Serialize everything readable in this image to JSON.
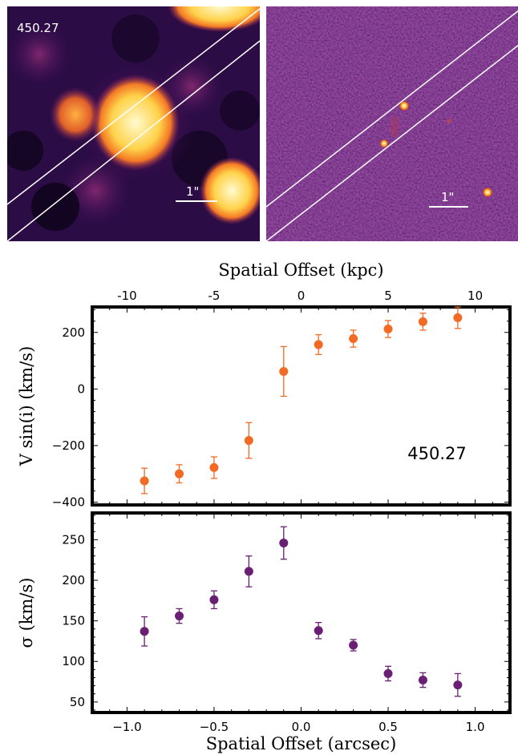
{
  "images": {
    "left": {
      "label": "450.27",
      "scale_label": "1\""
    },
    "right": {
      "scale_label": "1\""
    }
  },
  "colors": {
    "velocity": "#f26a23",
    "dispersion": "#6a1f74",
    "image_bg": "#3a0f55"
  },
  "chart_data": [
    {
      "type": "scatter",
      "title": "",
      "xlabel": "Spatial Offset (arcsec)",
      "x2label": "Spatial Offset (kpc)",
      "x2ticks": [
        "-10",
        "-5",
        "0",
        "5",
        "10"
      ],
      "ylabel": "V sin(i) (km/s)",
      "annotation": "450.27",
      "xlim": [
        -1.2,
        1.2
      ],
      "ylim": [
        -410,
        290
      ],
      "yticks": [
        "-400",
        "-200",
        "0",
        "200"
      ],
      "series": [
        {
          "x": [
            -0.9,
            -0.7,
            -0.5,
            -0.3,
            -0.1,
            0.1,
            0.3,
            0.5,
            0.7,
            0.9
          ],
          "y": [
            -325,
            -300,
            -278,
            -182,
            62,
            157,
            178,
            212,
            238,
            252
          ],
          "err": [
            45,
            32,
            38,
            63,
            88,
            35,
            30,
            30,
            30,
            38
          ]
        }
      ]
    },
    {
      "type": "scatter",
      "title": "",
      "xlabel": "Spatial Offset (arcsec)",
      "ylabel": "σ (km/s)",
      "xlim": [
        -1.2,
        1.2
      ],
      "xticks": [
        "−1.0",
        "−0.5",
        "0.0",
        "0.5",
        "1.0"
      ],
      "ylim": [
        37,
        283
      ],
      "yticks": [
        "50",
        "100",
        "150",
        "200",
        "250"
      ],
      "series": [
        {
          "x": [
            -0.9,
            -0.7,
            -0.5,
            -0.3,
            -0.1,
            0.1,
            0.3,
            0.5,
            0.7,
            0.9
          ],
          "y": [
            137,
            156,
            176,
            211,
            246,
            138,
            120,
            85,
            77,
            71
          ],
          "err": [
            18,
            9,
            11,
            19,
            20,
            10,
            7,
            9,
            9,
            14
          ]
        }
      ]
    }
  ]
}
